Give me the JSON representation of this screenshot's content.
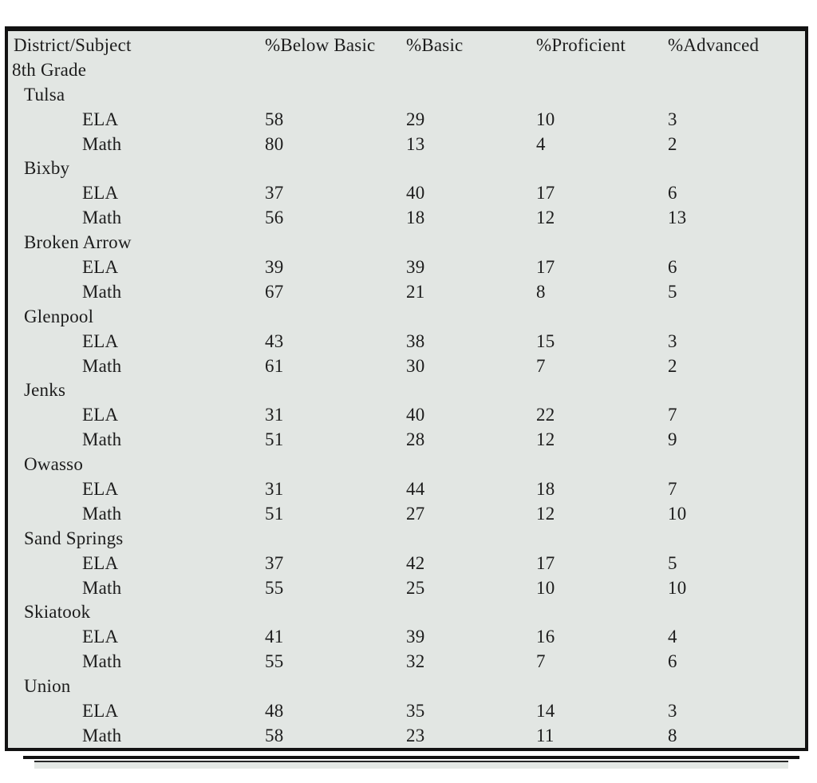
{
  "page": {
    "background_color": "#ffffff"
  },
  "table": {
    "background_color": "#e2e6e3",
    "border_color": "#121212",
    "text_color": "#1c1c1c",
    "columns": [
      "District/Subject",
      "%Below Basic",
      "%Basic",
      "%Proficient",
      "%Advanced"
    ],
    "rows": [
      {
        "type": "grade",
        "label": "8th Grade"
      },
      {
        "type": "district",
        "label": "Tulsa"
      },
      {
        "type": "subject",
        "label": "ELA",
        "values": [
          58,
          29,
          10,
          3
        ]
      },
      {
        "type": "subject",
        "label": "Math",
        "values": [
          80,
          13,
          4,
          2
        ]
      },
      {
        "type": "district",
        "label": "Bixby"
      },
      {
        "type": "subject",
        "label": "ELA",
        "values": [
          37,
          40,
          17,
          6
        ]
      },
      {
        "type": "subject",
        "label": "Math",
        "values": [
          56,
          18,
          12,
          13
        ]
      },
      {
        "type": "district",
        "label": "Broken Arrow"
      },
      {
        "type": "subject",
        "label": "ELA",
        "values": [
          39,
          39,
          17,
          6
        ]
      },
      {
        "type": "subject",
        "label": "Math",
        "values": [
          67,
          21,
          8,
          5
        ]
      },
      {
        "type": "district",
        "label": "Glenpool"
      },
      {
        "type": "subject",
        "label": "ELA",
        "values": [
          43,
          38,
          15,
          3
        ]
      },
      {
        "type": "subject",
        "label": "Math",
        "values": [
          61,
          30,
          7,
          2
        ]
      },
      {
        "type": "district",
        "label": "Jenks"
      },
      {
        "type": "subject",
        "label": "ELA",
        "values": [
          31,
          40,
          22,
          7
        ]
      },
      {
        "type": "subject",
        "label": "Math",
        "values": [
          51,
          28,
          12,
          9
        ]
      },
      {
        "type": "district",
        "label": "Owasso"
      },
      {
        "type": "subject",
        "label": "ELA",
        "values": [
          31,
          44,
          18,
          7
        ]
      },
      {
        "type": "subject",
        "label": "Math",
        "values": [
          51,
          27,
          12,
          10
        ]
      },
      {
        "type": "district",
        "label": "Sand Springs"
      },
      {
        "type": "subject",
        "label": "ELA",
        "values": [
          37,
          42,
          17,
          5
        ]
      },
      {
        "type": "subject",
        "label": "Math",
        "values": [
          55,
          25,
          10,
          10
        ]
      },
      {
        "type": "district",
        "label": "Skiatook"
      },
      {
        "type": "subject",
        "label": "ELA",
        "values": [
          41,
          39,
          16,
          4
        ]
      },
      {
        "type": "subject",
        "label": "Math",
        "values": [
          55,
          32,
          7,
          6
        ]
      },
      {
        "type": "district",
        "label": "Union"
      },
      {
        "type": "subject",
        "label": "ELA",
        "values": [
          48,
          35,
          14,
          3
        ]
      },
      {
        "type": "subject",
        "label": "Math",
        "values": [
          58,
          23,
          11,
          8
        ]
      }
    ]
  }
}
